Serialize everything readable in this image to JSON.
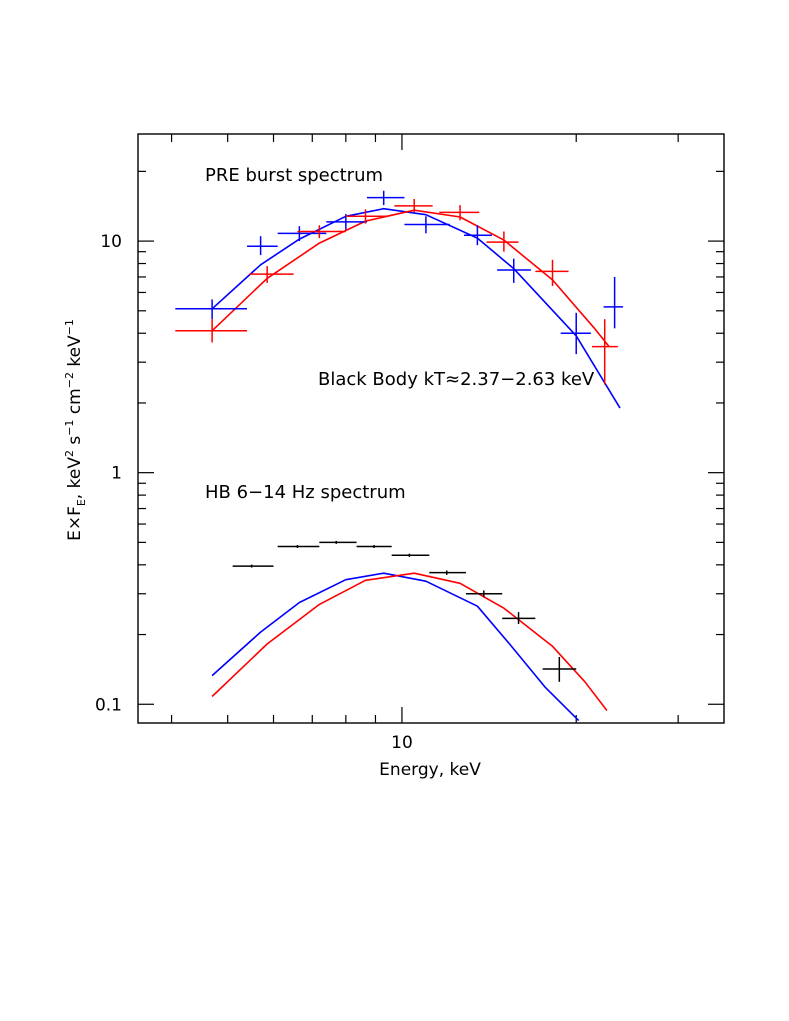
{
  "chart_data": {
    "type": "scatter",
    "title": "",
    "xlabel": "Energy, keV",
    "ylabel": "E×F_E, keV² s⁻¹ cm⁻² keV⁻¹",
    "ylabel_parts": {
      "a": "E×F",
      "b": "E",
      "c": ", keV",
      "d": "2",
      "e": " s",
      "f": "−1",
      "g": " cm",
      "h": "−2",
      "i": " keV",
      "j": "−1"
    },
    "x_scale": "log",
    "y_scale": "log",
    "xlim": [
      3.5,
      36
    ],
    "ylim": [
      0.083,
      29
    ],
    "x_tick_labels": [
      {
        "value": 10,
        "label": "10"
      }
    ],
    "y_tick_labels": [
      {
        "value": 0.1,
        "label": "0.1"
      },
      {
        "value": 1,
        "label": "1"
      },
      {
        "value": 10,
        "label": "10"
      }
    ],
    "annotations": [
      {
        "text": "PRE burst spectrum",
        "x": 5.3,
        "y": 20
      },
      {
        "text": "Black Body kT≈2.37−2.63 keV",
        "x": 13.3,
        "y": 2.9
      },
      {
        "text": "HB 6−14 Hz spectrum",
        "x": 5.3,
        "y": 0.85
      }
    ],
    "colors": {
      "blue": "#0000ff",
      "red": "#ff0000",
      "black": "#000000"
    },
    "series": [
      {
        "color": "blue",
        "kind": "data",
        "points": [
          {
            "x": 4.7,
            "xerr": [
              4.06,
              5.4
            ],
            "y": 5.1,
            "yerr": [
              4.6,
              5.6
            ]
          },
          {
            "x": 5.7,
            "xerr": [
              5.4,
              6.1
            ],
            "y": 9.5,
            "yerr": [
              8.7,
              10.5
            ]
          },
          {
            "x": 6.65,
            "xerr": [
              6.1,
              7.4
            ],
            "y": 10.8,
            "yerr": [
              10.0,
              11.6
            ]
          },
          {
            "x": 8.0,
            "xerr": [
              7.4,
              8.7
            ],
            "y": 12.1,
            "yerr": [
              11.2,
              13.1
            ]
          },
          {
            "x": 9.3,
            "xerr": [
              8.7,
              10.1
            ],
            "y": 15.4,
            "yerr": [
              14.3,
              16.5
            ]
          },
          {
            "x": 11.0,
            "xerr": [
              10.1,
              12.1
            ],
            "y": 11.8,
            "yerr": [
              10.8,
              12.8
            ]
          },
          {
            "x": 13.5,
            "xerr": [
              12.8,
              14.3
            ],
            "y": 10.6,
            "yerr": [
              9.6,
              11.7
            ]
          },
          {
            "x": 15.6,
            "xerr": [
              14.6,
              16.7
            ],
            "y": 7.5,
            "yerr": [
              6.6,
              8.4
            ]
          },
          {
            "x": 20.0,
            "xerr": [
              18.8,
              21.2
            ],
            "y": 4.0,
            "yerr": [
              3.25,
              4.9
            ]
          },
          {
            "x": 23.3,
            "xerr": [
              22.3,
              24.1
            ],
            "y": 5.2,
            "yerr": [
              4.2,
              7.0
            ]
          }
        ]
      },
      {
        "color": "red",
        "kind": "data",
        "points": [
          {
            "x": 4.7,
            "xerr": [
              4.06,
              5.4
            ],
            "y": 4.1,
            "yerr": [
              3.65,
              4.6
            ]
          },
          {
            "x": 5.85,
            "xerr": [
              5.45,
              6.5
            ],
            "y": 7.2,
            "yerr": [
              6.6,
              7.8
            ]
          },
          {
            "x": 7.2,
            "xerr": [
              6.6,
              8.0
            ],
            "y": 11.0,
            "yerr": [
              10.3,
              11.7
            ]
          },
          {
            "x": 8.65,
            "xerr": [
              8.0,
              9.4
            ],
            "y": 12.8,
            "yerr": [
              11.9,
              13.7
            ]
          },
          {
            "x": 10.5,
            "xerr": [
              9.7,
              11.3
            ],
            "y": 14.2,
            "yerr": [
              13.3,
              15.2
            ]
          },
          {
            "x": 12.6,
            "xerr": [
              11.6,
              13.6
            ],
            "y": 13.3,
            "yerr": [
              12.3,
              14.3
            ]
          },
          {
            "x": 15.0,
            "xerr": [
              14.0,
              15.9
            ],
            "y": 9.9,
            "yerr": [
              9.0,
              11.0
            ]
          },
          {
            "x": 18.2,
            "xerr": [
              17.0,
              19.4
            ],
            "y": 7.4,
            "yerr": [
              6.4,
              8.3
            ]
          },
          {
            "x": 22.4,
            "xerr": [
              21.3,
              23.6
            ],
            "y": 3.5,
            "yerr": [
              2.4,
              4.6
            ]
          }
        ]
      },
      {
        "color": "black",
        "kind": "data",
        "points": [
          {
            "x": 5.5,
            "xerr": [
              5.1,
              6.0
            ],
            "y": 0.395,
            "yerr": [
              0.392,
              0.398
            ]
          },
          {
            "x": 6.6,
            "xerr": [
              6.1,
              7.2
            ],
            "y": 0.48,
            "yerr": [
              0.475,
              0.485
            ]
          },
          {
            "x": 7.7,
            "xerr": [
              7.2,
              8.35
            ],
            "y": 0.5,
            "yerr": [
              0.494,
              0.506
            ]
          },
          {
            "x": 8.95,
            "xerr": [
              8.35,
              9.6
            ],
            "y": 0.48,
            "yerr": [
              0.473,
              0.487
            ]
          },
          {
            "x": 10.3,
            "xerr": [
              9.6,
              11.15
            ],
            "y": 0.44,
            "yerr": [
              0.433,
              0.447
            ]
          },
          {
            "x": 11.95,
            "xerr": [
              11.15,
              12.9
            ],
            "y": 0.37,
            "yerr": [
              0.362,
              0.378
            ]
          },
          {
            "x": 13.85,
            "xerr": [
              12.9,
              14.9
            ],
            "y": 0.3,
            "yerr": [
              0.29,
              0.31
            ]
          },
          {
            "x": 15.9,
            "xerr": [
              14.9,
              17.0
            ],
            "y": 0.235,
            "yerr": [
              0.222,
              0.25
            ]
          },
          {
            "x": 18.7,
            "xerr": [
              17.5,
              20.0
            ],
            "y": 0.142,
            "yerr": [
              0.125,
              0.16
            ]
          }
        ]
      },
      {
        "color": "blue",
        "kind": "model",
        "points": [
          [
            4.7,
            5.1
          ],
          [
            5.7,
            7.9
          ],
          [
            6.65,
            10.2
          ],
          [
            8.0,
            12.8
          ],
          [
            9.3,
            13.8
          ],
          [
            11.0,
            13.0
          ],
          [
            13.5,
            10.3
          ],
          [
            15.6,
            7.6
          ],
          [
            20.0,
            3.9
          ],
          [
            23.8,
            1.9
          ]
        ]
      },
      {
        "color": "red",
        "kind": "model",
        "points": [
          [
            4.7,
            4.1
          ],
          [
            5.85,
            6.9
          ],
          [
            7.2,
            9.8
          ],
          [
            8.65,
            12.2
          ],
          [
            10.5,
            13.6
          ],
          [
            12.6,
            12.7
          ],
          [
            15.0,
            10.1
          ],
          [
            18.2,
            6.8
          ],
          [
            21.5,
            4.2
          ],
          [
            22.8,
            3.5
          ]
        ]
      },
      {
        "color": "blue",
        "kind": "model",
        "points": [
          [
            4.7,
            0.133
          ],
          [
            5.7,
            0.205
          ],
          [
            6.65,
            0.275
          ],
          [
            8.0,
            0.345
          ],
          [
            9.3,
            0.368
          ],
          [
            11.0,
            0.34
          ],
          [
            13.5,
            0.265
          ],
          [
            15.4,
            0.18
          ],
          [
            17.7,
            0.118
          ],
          [
            20.2,
            0.085
          ]
        ]
      },
      {
        "color": "red",
        "kind": "model",
        "points": [
          [
            4.7,
            0.108
          ],
          [
            5.85,
            0.182
          ],
          [
            7.2,
            0.27
          ],
          [
            8.65,
            0.343
          ],
          [
            10.5,
            0.368
          ],
          [
            12.6,
            0.333
          ],
          [
            15.0,
            0.26
          ],
          [
            18.2,
            0.178
          ],
          [
            20.7,
            0.125
          ],
          [
            22.6,
            0.094
          ]
        ]
      }
    ]
  }
}
